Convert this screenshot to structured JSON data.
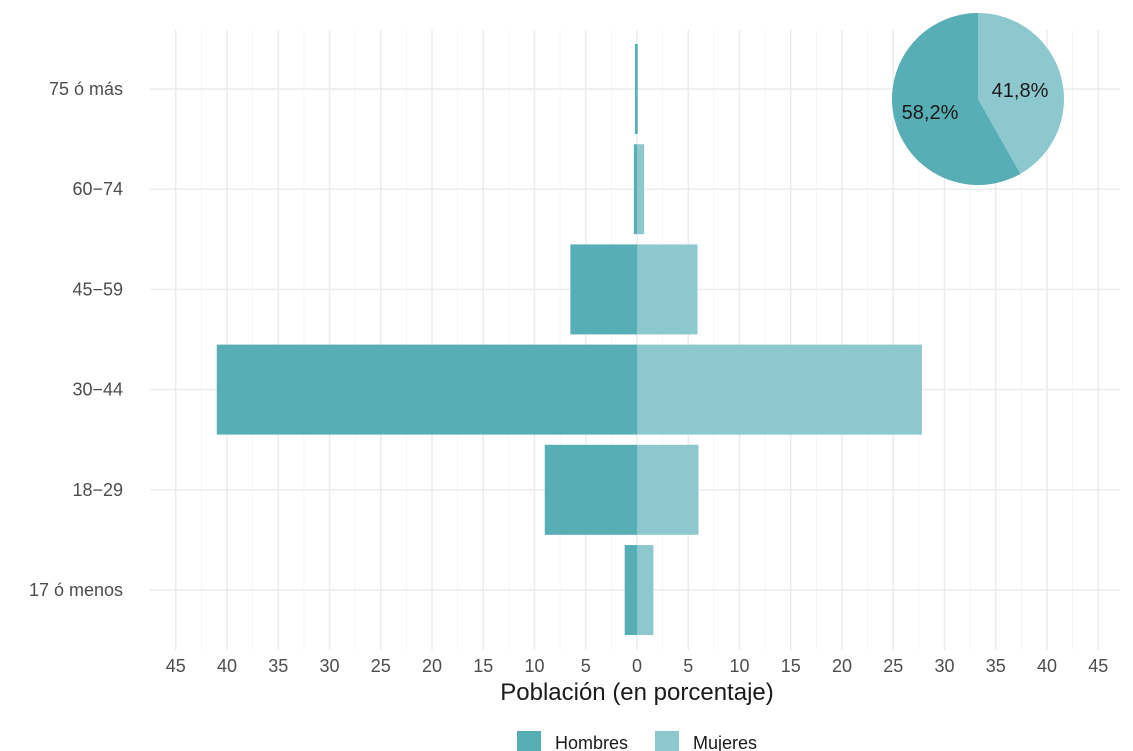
{
  "chart_data": {
    "type": "bar",
    "orientation": "horizontal",
    "subtype": "population-pyramid",
    "categories": [
      "17 ó menos",
      "18–29",
      "30–44",
      "45–59",
      "60–74",
      "75 ó más"
    ],
    "category_labels": [
      "17 ó menos",
      "18−29",
      "30−44",
      "45−59",
      "60−74",
      "75 ó más"
    ],
    "series": [
      {
        "name": "Hombres",
        "color": "#58aeb5",
        "direction": "left",
        "values": [
          1.2,
          9.0,
          41.0,
          6.5,
          0.3,
          0.2
        ]
      },
      {
        "name": "Mujeres",
        "color": "#8ec8cf",
        "direction": "right",
        "values": [
          1.6,
          6.0,
          27.8,
          5.9,
          0.7,
          0.1
        ]
      }
    ],
    "x_ticks": [
      45,
      40,
      35,
      30,
      25,
      20,
      15,
      10,
      5,
      0,
      5,
      10,
      15,
      20,
      25,
      30,
      35,
      40,
      45
    ],
    "xlim": [
      -45,
      45
    ],
    "xlabel": "Población (en porcentaje)",
    "ylabel": "",
    "title": "",
    "grid": true,
    "legend_position": "bottom",
    "inset": {
      "type": "pie",
      "position": "top-right",
      "slices": [
        {
          "name": "Hombres",
          "value": 58.2,
          "label": "58,2%",
          "color": "#58aeb5"
        },
        {
          "name": "Mujeres",
          "value": 41.8,
          "label": "41,8%",
          "color": "#8ec8cf"
        }
      ]
    }
  }
}
